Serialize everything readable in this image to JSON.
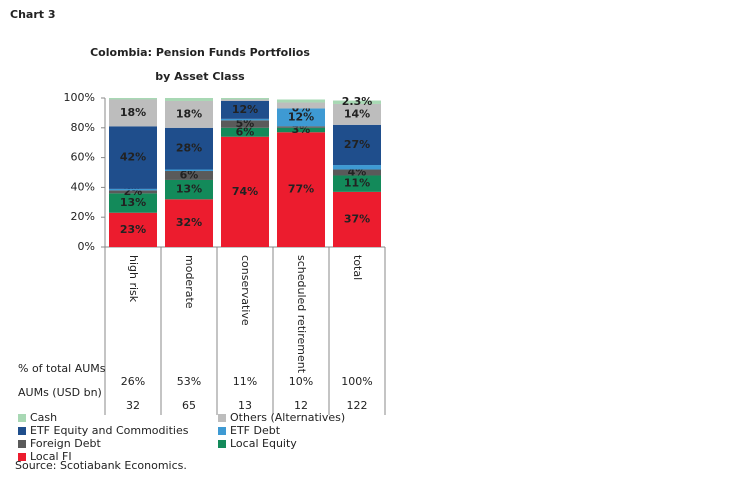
{
  "header": "Chart 3",
  "chart_data": {
    "type": "stacked_bar",
    "title": [
      "Colombia: Pension Funds Portfolios",
      "by Asset Class"
    ],
    "categories": [
      "high risk",
      "moderate",
      "conservative",
      "scheduled retirement",
      "total"
    ],
    "ylim": [
      0,
      100
    ],
    "yticks": [
      {
        "value": 0,
        "label": "0%"
      },
      {
        "value": 20,
        "label": "20%"
      },
      {
        "value": 40,
        "label": "40%"
      },
      {
        "value": 60,
        "label": "60%"
      },
      {
        "value": 80,
        "label": "80%"
      },
      {
        "value": 100,
        "label": "100%"
      }
    ],
    "series": [
      {
        "name": "Cash",
        "color": "#a8d8b4",
        "values": [
          1,
          2,
          1,
          2,
          2.3
        ],
        "value_labels": [
          null,
          null,
          null,
          null,
          "2.3%"
        ]
      },
      {
        "name": "Others (Alternatives)",
        "color": "#bdbdbd",
        "values": [
          18,
          18,
          1,
          4,
          14
        ],
        "value_labels": [
          "18%",
          "18%",
          null,
          null,
          "14%"
        ]
      },
      {
        "name": "ETF Equity and Commodities",
        "color": "#1f4e8c",
        "values": [
          42,
          28,
          12,
          0,
          27
        ],
        "value_labels": [
          "42%",
          "28%",
          "12%",
          "0%",
          "27%"
        ]
      },
      {
        "name": "ETF Debt",
        "color": "#3e9ad3",
        "values": [
          1,
          1,
          1,
          12,
          3
        ],
        "value_labels": [
          null,
          null,
          null,
          "12%",
          null
        ]
      },
      {
        "name": "Foreign Debt",
        "color": "#5a5a5a",
        "values": [
          2,
          6,
          5,
          1,
          4
        ],
        "value_labels": [
          "2%",
          "6%",
          "5%",
          null,
          "4%"
        ]
      },
      {
        "name": "Local Equity",
        "color": "#138a5a",
        "values": [
          13,
          13,
          6,
          3,
          11
        ],
        "value_labels": [
          "13%",
          "13%",
          "6%",
          "3%",
          "11%"
        ]
      },
      {
        "name": "Local FI",
        "color": "#ec1c2e",
        "values": [
          23,
          32,
          74,
          77,
          37
        ],
        "value_labels": [
          "23%",
          "32%",
          "74%",
          "77%",
          "37%"
        ]
      }
    ],
    "table": [
      {
        "label": "% of total AUMs",
        "values": [
          "26%",
          "53%",
          "11%",
          "10%",
          "100%"
        ]
      },
      {
        "label": "AUMs (USD bn)",
        "values": [
          32,
          65,
          13,
          12,
          122
        ]
      }
    ],
    "source": "Source: Scotiabank Economics."
  }
}
